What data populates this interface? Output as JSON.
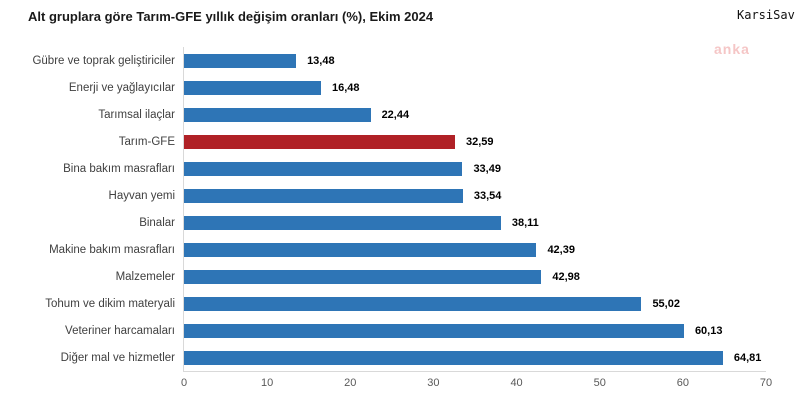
{
  "header": {
    "title": "Alt gruplara göre Tarım-GFE yıllık değişim oranları (%), Ekim 2024",
    "brand": "KarsiSav"
  },
  "watermark": "anka",
  "colors": {
    "bar_blue": "#2E75B6",
    "bar_red": "#B02126",
    "axis_line": "#D9D9D9",
    "tick_text": "#595959",
    "category_text": "#404040",
    "value_text": "#000000",
    "watermark_pink": "#F5C6C6"
  },
  "chart_data": {
    "type": "bar",
    "orientation": "horizontal",
    "title": "Alt gruplara göre Tarım-GFE yıllık değişim oranları (%), Ekim 2024",
    "categories": [
      "Gübre ve toprak geliştiriciler",
      "Enerji  ve yağlayıcılar",
      "Tarımsal ilaçlar",
      "Tarım-GFE",
      "Bina bakım masrafları",
      "Hayvan yemi",
      "Binalar",
      "Makine bakım masrafları",
      "Malzemeler",
      "Tohum ve dikim materyali",
      "Veteriner harcamaları",
      "Diğer mal ve hizmetler"
    ],
    "values": [
      13.48,
      16.48,
      22.44,
      32.59,
      33.49,
      33.54,
      38.11,
      42.39,
      42.98,
      55.02,
      60.13,
      64.81
    ],
    "value_labels": [
      "13,48",
      "16,48",
      "22,44",
      "32,59",
      "33,49",
      "33,54",
      "38,11",
      "42,39",
      "42,98",
      "55,02",
      "60,13",
      "64,81"
    ],
    "highlight_category": "Tarım-GFE",
    "xlabel": "",
    "ylabel": "",
    "xlim": [
      0,
      70
    ],
    "x_ticks": [
      0,
      10,
      20,
      30,
      40,
      50,
      60,
      70
    ],
    "grid": false,
    "legend": false,
    "data_labels": true
  }
}
